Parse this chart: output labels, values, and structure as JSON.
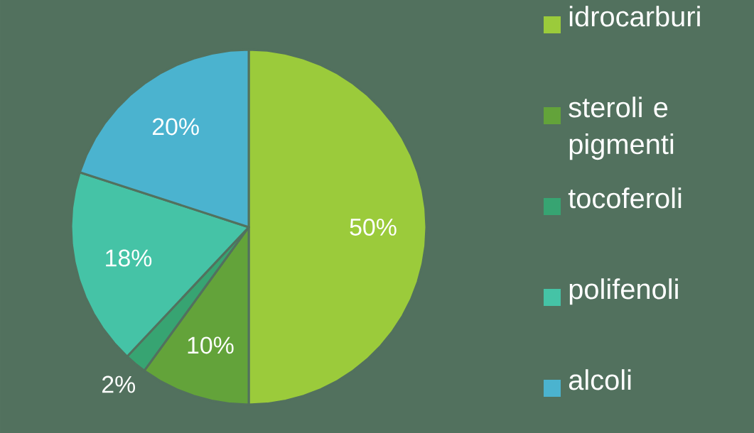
{
  "chart_data": {
    "type": "pie",
    "categories": [
      "idrocarburi",
      "steroli e pigmenti",
      "tocoferoli",
      "polifenoli",
      "alcoli"
    ],
    "values": [
      50,
      10,
      2,
      18,
      20
    ],
    "colors": [
      "#9bcb3b",
      "#63a33a",
      "#37a472",
      "#45c3a6",
      "#4bb3cf"
    ],
    "value_labels": [
      "50%",
      "10%",
      "2%",
      "18%",
      "20%"
    ],
    "legend": "right"
  }
}
